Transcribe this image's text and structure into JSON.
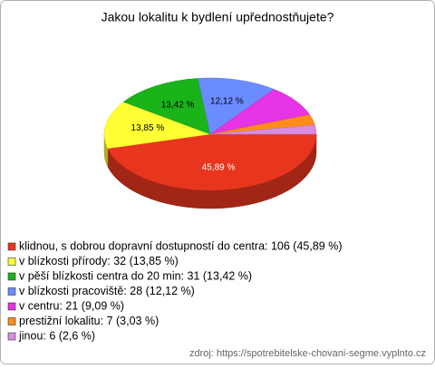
{
  "chart_data": {
    "type": "pie",
    "title": "Jakou lokalitu k bydlení upřednostňujete?",
    "categories": [
      "klidnou, s dobrou dopravní dostupností do centra: 106 (45,89 %)",
      "v blízkosti přírody: 32 (13,85 %)",
      "v pěší blízkosti centra do 20 min: 31 (13,42 %)",
      "v blízkosti pracoviště: 28 (12,12 %)",
      "v centru: 21 (9,09 %)",
      "prestižní lokalitu: 7 (3,03 %)",
      "jinou: 6 (2,6 %)"
    ],
    "values": [
      45.89,
      13.85,
      13.42,
      12.12,
      9.09,
      3.03,
      2.6
    ],
    "value_labels": [
      "45,89 %",
      "13,85 %",
      "13,42 %",
      "12,12 %",
      null,
      null,
      null
    ],
    "colors": [
      "#e8361e",
      "#ffff33",
      "#1ab31a",
      "#6b8cff",
      "#e533e5",
      "#ff8c1a",
      "#d98ce0"
    ],
    "source": "zdroj: https://spotrebitelske-chovani-segme.vyplnto.cz"
  }
}
